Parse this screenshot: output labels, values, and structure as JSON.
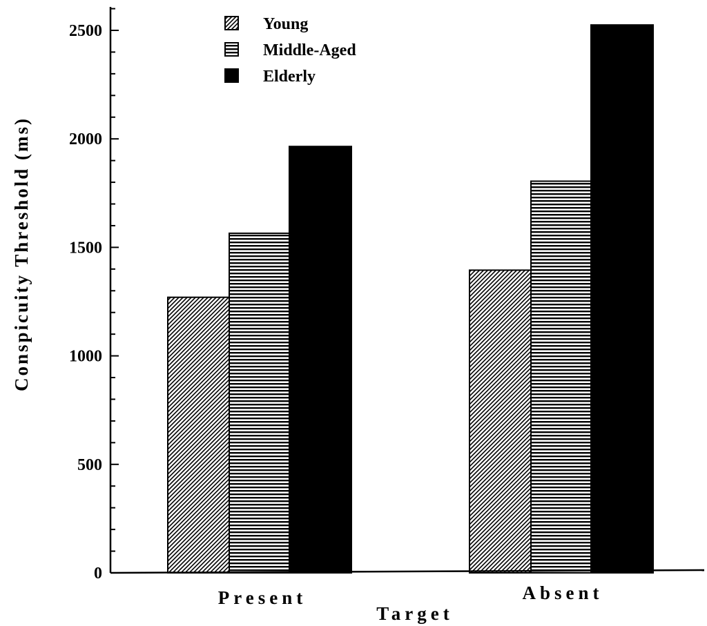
{
  "chart_data": {
    "type": "bar",
    "categories": [
      "Present",
      "Absent"
    ],
    "series": [
      {
        "name": "Young",
        "values": [
          1270,
          1395
        ],
        "pattern": "diagonal-hatch"
      },
      {
        "name": "Middle-Aged",
        "values": [
          1565,
          1805
        ],
        "pattern": "horizontal-lines"
      },
      {
        "name": "Elderly",
        "values": [
          1965,
          2525
        ],
        "pattern": "solid"
      }
    ],
    "title": "",
    "xlabel": "Target",
    "ylabel": "Conspicuity Threshold (ms)",
    "ylim": [
      0,
      2600
    ],
    "yticks": [
      0,
      500,
      1000,
      1500,
      2000,
      2500
    ],
    "grid": false,
    "legend_position": "top-left",
    "colors": {
      "bar": "#000000",
      "background": "#ffffff"
    }
  }
}
